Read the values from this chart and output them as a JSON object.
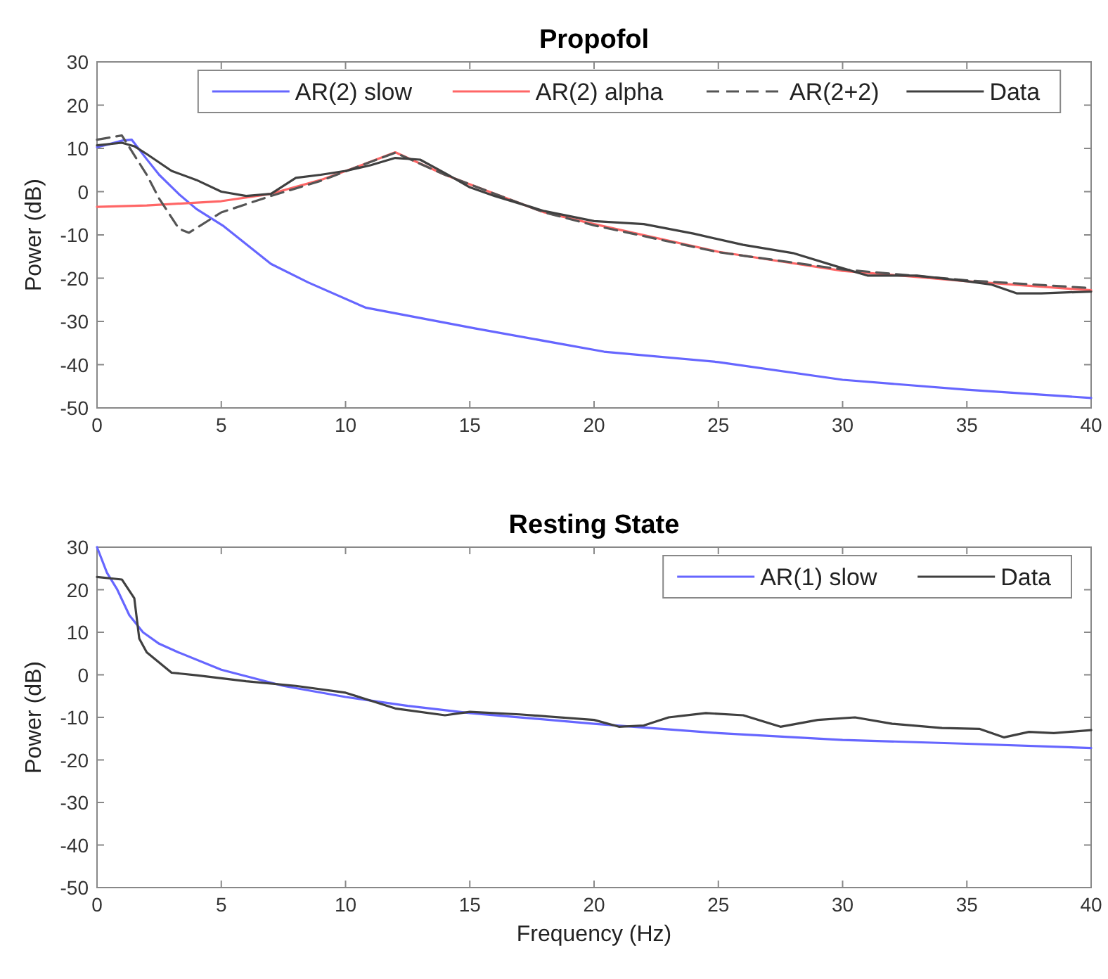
{
  "chart_data": [
    {
      "type": "line",
      "title": "Propofol",
      "ylabel": "Power (dB)",
      "xlim": [
        0,
        40
      ],
      "ylim": [
        -50,
        30
      ],
      "xticks": [
        0,
        5,
        10,
        15,
        20,
        25,
        30,
        35,
        40
      ],
      "yticks": [
        -50,
        -40,
        -30,
        -20,
        -10,
        0,
        10,
        20,
        30
      ],
      "legend": "top",
      "grid": false,
      "series": [
        {
          "name": "AR(2) slow",
          "color": "#6666ff",
          "line_style": "solid",
          "x": [
            0,
            0.5,
            1,
            1.4,
            2,
            2.5,
            3.3,
            4,
            5.1,
            7,
            8.5,
            10.8,
            15.2,
            20.4,
            25,
            30,
            35,
            40
          ],
          "values": [
            10.3,
            11,
            11.8,
            12,
            7.5,
            3.9,
            -0.6,
            -4,
            -8,
            -16.7,
            -21,
            -26.8,
            -31.6,
            -37,
            -39.4,
            -43.5,
            -45.8,
            -47.7
          ]
        },
        {
          "name": "AR(2) alpha",
          "color": "#ff6666",
          "line_style": "solid",
          "x": [
            0,
            2,
            5,
            7,
            9,
            10.5,
            12,
            14,
            16,
            18,
            20,
            25,
            30,
            35,
            40
          ],
          "values": [
            -3.5,
            -3.2,
            -2.2,
            -0.5,
            2.7,
            5.8,
            9.1,
            3.9,
            -0.5,
            -4.8,
            -7.5,
            -13.9,
            -18.3,
            -20.7,
            -22.8
          ]
        },
        {
          "name": "AR(2+2)",
          "color": "#555555",
          "line_style": "dashed",
          "x": [
            0,
            1,
            2,
            2.5,
            3.3,
            3.7,
            5,
            7,
            9,
            10.5,
            12,
            14,
            16,
            18,
            20,
            25,
            30,
            35,
            40
          ],
          "values": [
            12,
            13,
            3.9,
            -1.6,
            -8.6,
            -9.5,
            -4.8,
            -1,
            2.5,
            5.8,
            9,
            3.9,
            -0.5,
            -4.8,
            -7.8,
            -14,
            -18,
            -20.5,
            -22.3
          ]
        },
        {
          "name": "Data",
          "color": "#404040",
          "line_style": "solid",
          "x": [
            0,
            1,
            1.5,
            2,
            3,
            4,
            5,
            6,
            7,
            8,
            9,
            10,
            11,
            12,
            13,
            14,
            15,
            16,
            18,
            20,
            22,
            24,
            26,
            28,
            30,
            31,
            33,
            35,
            36,
            37,
            38,
            40
          ],
          "values": [
            10.7,
            11.3,
            10.5,
            8.7,
            4.8,
            2.7,
            0,
            -1,
            -0.5,
            3.2,
            3.9,
            4.8,
            6.1,
            7.8,
            7.4,
            4.3,
            1,
            -1,
            -4.5,
            -6.8,
            -7.5,
            -9.7,
            -12.3,
            -14.2,
            -17.7,
            -19.4,
            -19.4,
            -20.7,
            -21.5,
            -23.5,
            -23.5,
            -23.1
          ]
        }
      ]
    },
    {
      "type": "line",
      "title": "Resting State",
      "xlabel": "Frequency (Hz)",
      "ylabel": "Power (dB)",
      "xlim": [
        0,
        40
      ],
      "ylim": [
        -50,
        30
      ],
      "xticks": [
        0,
        5,
        10,
        15,
        20,
        25,
        30,
        35,
        40
      ],
      "yticks": [
        -50,
        -40,
        -30,
        -20,
        -10,
        0,
        10,
        20,
        30
      ],
      "legend": "top right",
      "grid": false,
      "series": [
        {
          "name": "AR(1) slow",
          "color": "#6666ff",
          "line_style": "solid",
          "x": [
            0,
            0.4,
            0.8,
            1.3,
            1.85,
            2.5,
            3.27,
            5,
            7.5,
            10,
            12.5,
            15,
            20,
            25,
            30,
            35,
            40
          ],
          "values": [
            30,
            24,
            20.2,
            14,
            10,
            7.3,
            5.3,
            1.2,
            -2.6,
            -5.2,
            -7.3,
            -9,
            -11.5,
            -13.7,
            -15.3,
            -16.2,
            -17.2
          ]
        },
        {
          "name": "Data",
          "color": "#404040",
          "line_style": "solid",
          "x": [
            0,
            1,
            1.5,
            1.7,
            2,
            3,
            4,
            6,
            8,
            10,
            12,
            14,
            15,
            17,
            20,
            21,
            22,
            23,
            24.5,
            26,
            27.5,
            29,
            30.5,
            32,
            34,
            35.5,
            36.5,
            37.5,
            38.5,
            40
          ],
          "values": [
            23,
            22.4,
            18,
            8.5,
            5.3,
            0.5,
            -0.1,
            -1.5,
            -2.6,
            -4.2,
            -7.9,
            -9.5,
            -8.7,
            -9.3,
            -10.6,
            -12.2,
            -11.9,
            -10,
            -9,
            -9.5,
            -12.2,
            -10.6,
            -10,
            -11.5,
            -12.5,
            -12.7,
            -14.7,
            -13.4,
            -13.7,
            -13
          ]
        }
      ]
    }
  ]
}
